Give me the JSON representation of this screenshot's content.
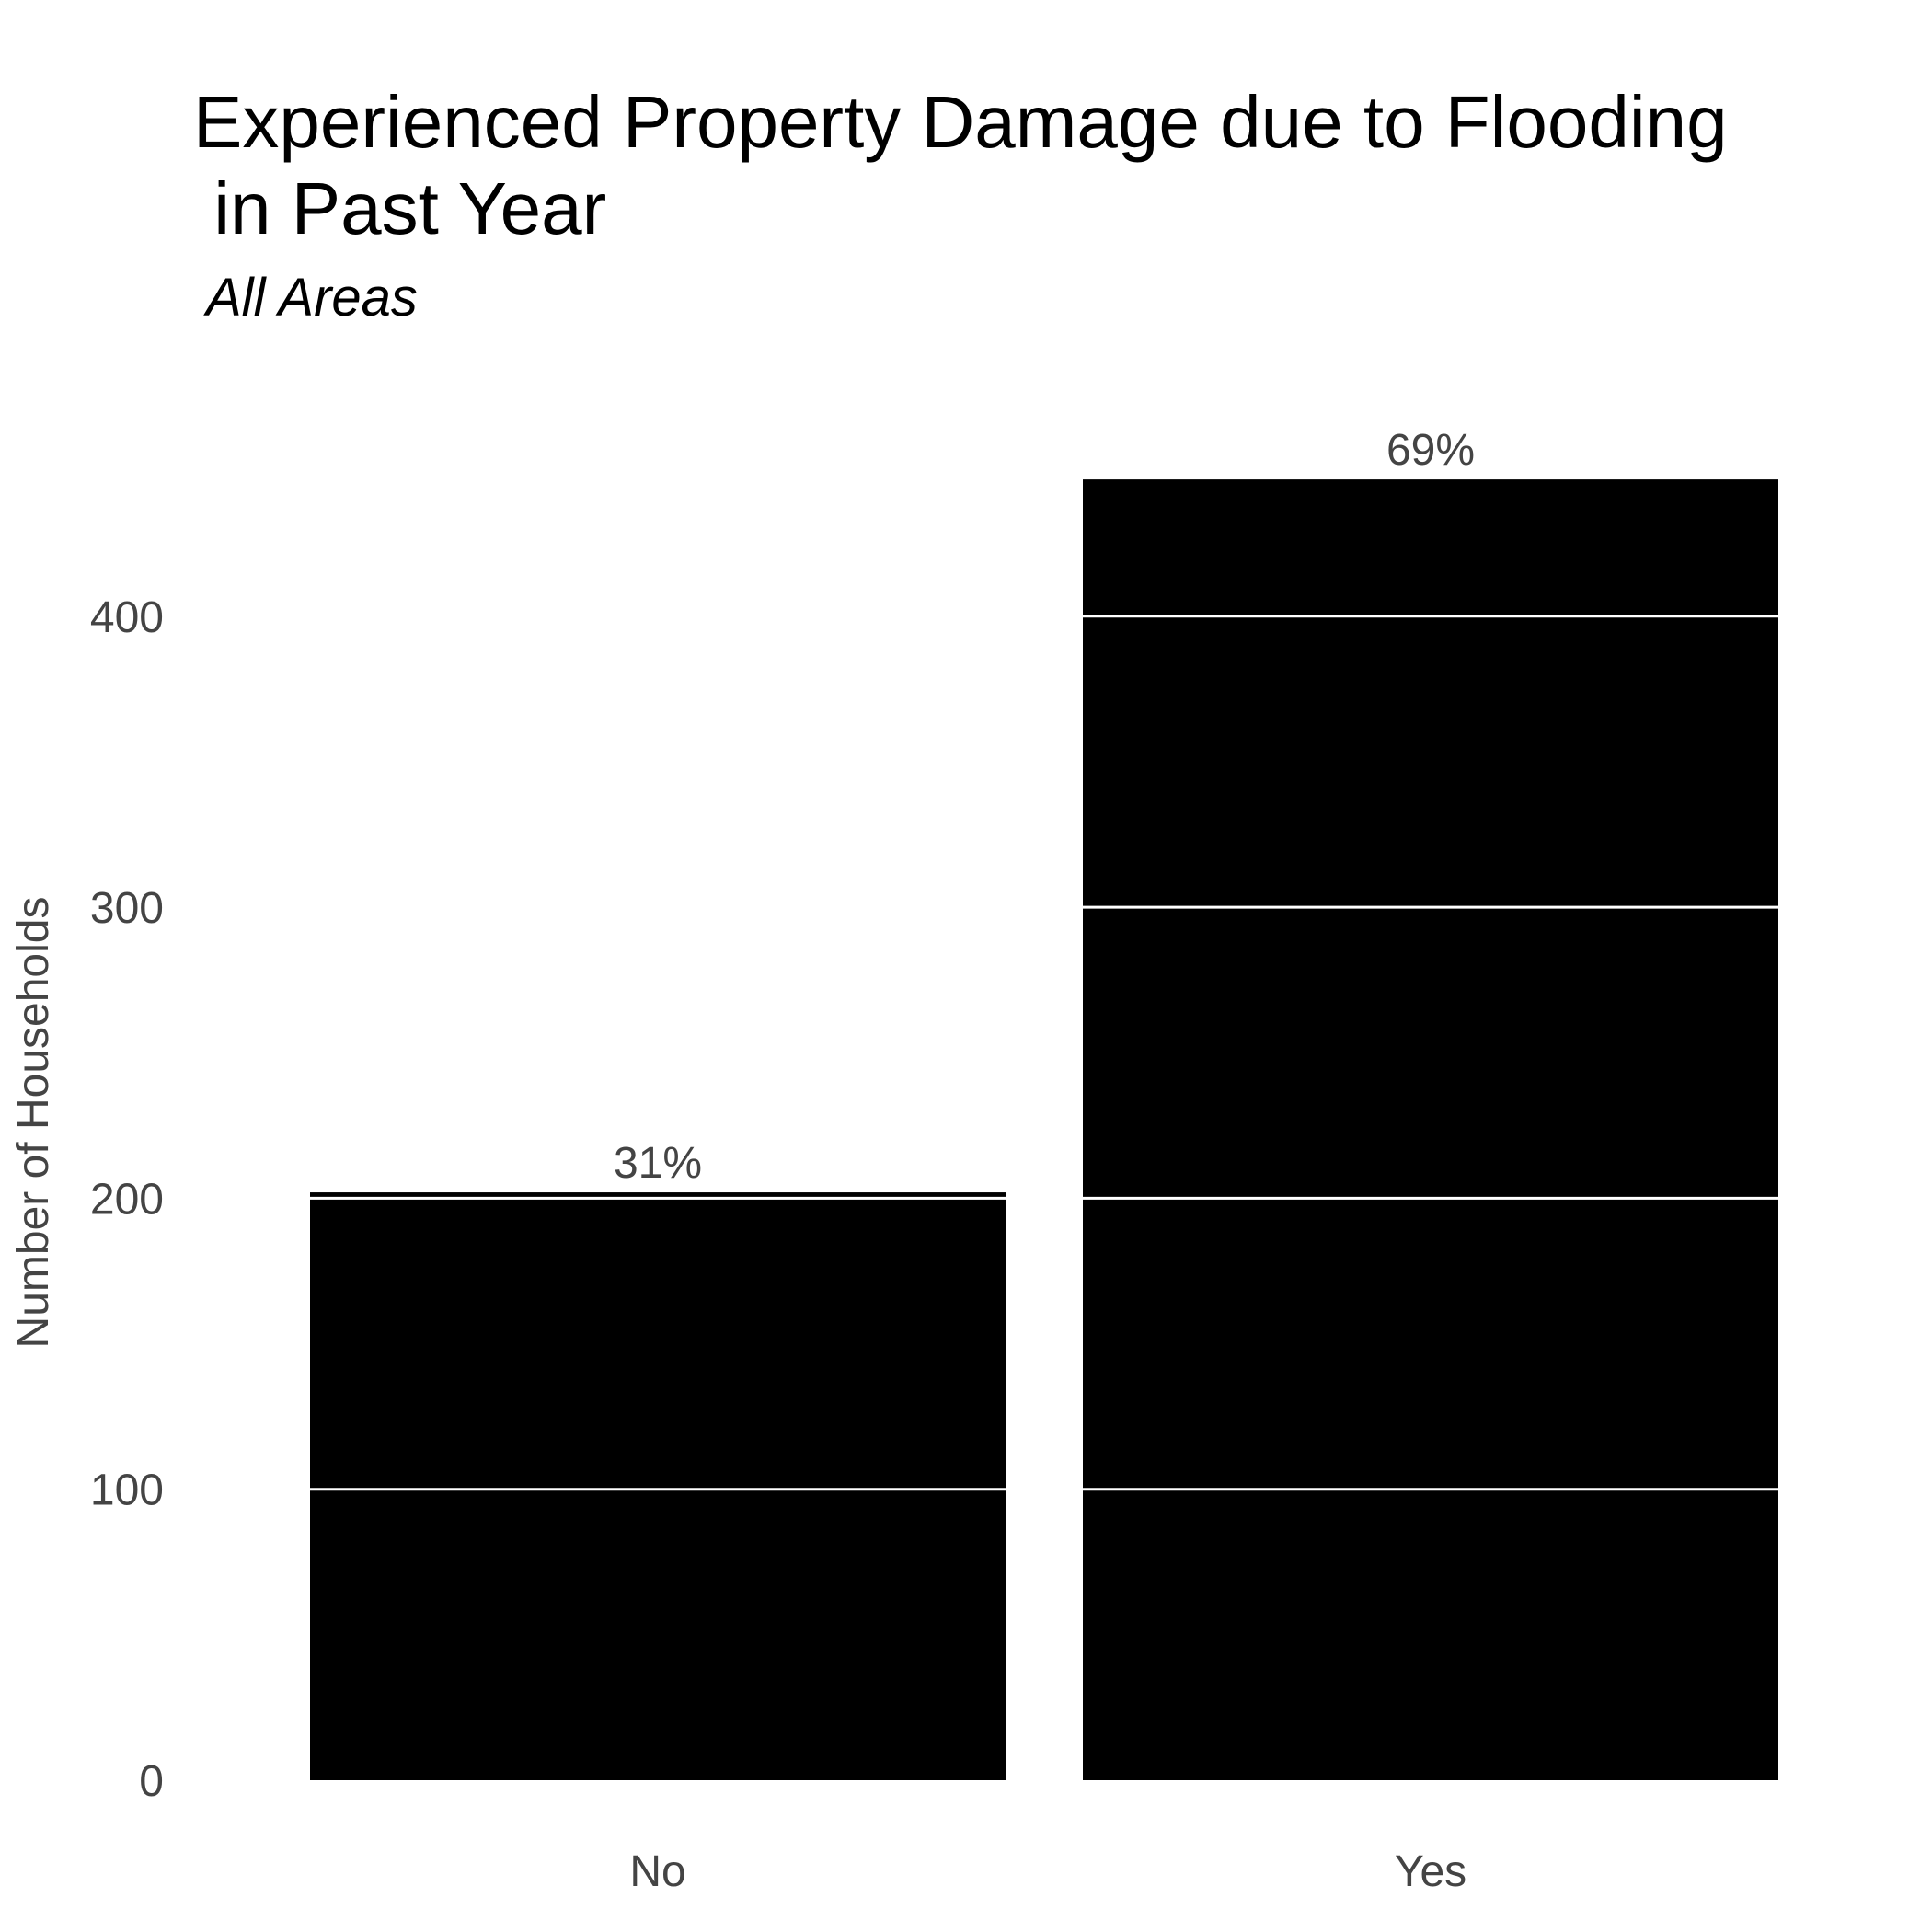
{
  "chart_data": {
    "type": "bar",
    "title": "Experienced Property Damage due to Flooding\n in Past Year",
    "subtitle": "All Areas",
    "xlabel": "",
    "ylabel": "Number of Households",
    "categories": [
      "No",
      "Yes"
    ],
    "values": [
      202,
      447
    ],
    "data_labels": [
      "31%",
      "69%"
    ],
    "ylim": [
      0,
      460
    ],
    "yticks": [
      0,
      100,
      200,
      300,
      400
    ],
    "grid": true,
    "legend": "none",
    "colors": {
      "bar": "#000000",
      "gridline": "#ffffff",
      "background": "#ffffff",
      "text": "#444444",
      "title": "#000000"
    }
  }
}
